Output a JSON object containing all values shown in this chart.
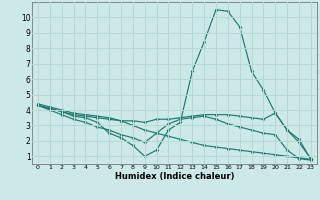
{
  "xlabel": "Humidex (Indice chaleur)",
  "ylabel": "",
  "xlim": [
    -0.5,
    23.5
  ],
  "ylim": [
    0.5,
    11.0
  ],
  "xticks": [
    0,
    1,
    2,
    3,
    4,
    5,
    6,
    7,
    8,
    9,
    10,
    11,
    12,
    13,
    14,
    15,
    16,
    17,
    18,
    19,
    20,
    21,
    22,
    23
  ],
  "yticks": [
    1,
    2,
    3,
    4,
    5,
    6,
    7,
    8,
    9,
    10
  ],
  "bg_color": "#cce9e7",
  "grid_color": "#b8d8d5",
  "line_color": "#1e7a70",
  "lines": [
    {
      "x": [
        0,
        1,
        2,
        3,
        4,
        5,
        6,
        7,
        8,
        9,
        10,
        11,
        12,
        13,
        14,
        15,
        16,
        17,
        18,
        19,
        20,
        21,
        22,
        23
      ],
      "y": [
        4.3,
        4.1,
        3.9,
        3.6,
        3.5,
        3.2,
        2.5,
        2.2,
        1.7,
        1.0,
        1.4,
        2.7,
        3.2,
        6.5,
        8.4,
        10.5,
        10.4,
        9.4,
        6.5,
        5.3,
        3.8,
        2.7,
        1.9,
        0.85
      ]
    },
    {
      "x": [
        0,
        1,
        2,
        3,
        4,
        5,
        6,
        7,
        8,
        9,
        10,
        11,
        12,
        13,
        14,
        15,
        16,
        17,
        18,
        19,
        20,
        21,
        22,
        23
      ],
      "y": [
        4.3,
        4.1,
        3.9,
        3.7,
        3.6,
        3.5,
        3.4,
        3.3,
        3.3,
        3.2,
        3.4,
        3.4,
        3.5,
        3.6,
        3.7,
        3.7,
        3.7,
        3.6,
        3.5,
        3.4,
        3.8,
        2.7,
        2.1,
        0.8
      ]
    },
    {
      "x": [
        0,
        1,
        2,
        3,
        4,
        5,
        6,
        7,
        8,
        9,
        10,
        11,
        12,
        13,
        14,
        15,
        16,
        17,
        18,
        19,
        20,
        21,
        22,
        23
      ],
      "y": [
        4.3,
        4.0,
        3.7,
        3.4,
        3.2,
        2.9,
        2.7,
        2.4,
        2.2,
        1.9,
        2.5,
        3.1,
        3.4,
        3.5,
        3.6,
        3.4,
        3.1,
        2.9,
        2.7,
        2.5,
        2.4,
        1.4,
        0.85,
        0.75
      ]
    },
    {
      "x": [
        0,
        1,
        2,
        3,
        4,
        5,
        6,
        7,
        8,
        9,
        10,
        11,
        12,
        13,
        14,
        15,
        16,
        17,
        18,
        19,
        20,
        21,
        22,
        23
      ],
      "y": [
        4.4,
        4.2,
        4.0,
        3.8,
        3.7,
        3.6,
        3.5,
        3.3,
        3.0,
        2.7,
        2.5,
        2.3,
        2.1,
        1.9,
        1.7,
        1.6,
        1.5,
        1.4,
        1.3,
        1.2,
        1.1,
        1.0,
        0.9,
        0.8
      ]
    }
  ]
}
